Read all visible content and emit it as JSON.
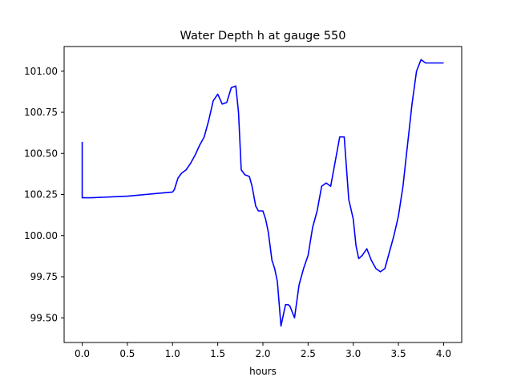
{
  "chart_data": {
    "type": "line",
    "title": "Water Depth h at gauge 550",
    "xlabel": "hours",
    "ylabel": "",
    "xlim": [
      -0.2,
      4.2
    ],
    "ylim": [
      99.35,
      101.15
    ],
    "xticks": [
      0.0,
      0.5,
      1.0,
      1.5,
      2.0,
      2.5,
      3.0,
      3.5,
      4.0
    ],
    "xtick_labels": [
      "0.0",
      "0.5",
      "1.0",
      "1.5",
      "2.0",
      "2.5",
      "3.0",
      "3.5",
      "4.0"
    ],
    "yticks": [
      99.5,
      99.75,
      100.0,
      100.25,
      100.5,
      100.75,
      101.0
    ],
    "ytick_labels": [
      "99.50",
      "99.75",
      "100.00",
      "100.25",
      "100.50",
      "100.75",
      "101.00"
    ],
    "grid": false,
    "series": [
      {
        "color": "#0000ff",
        "x": [
          0.0,
          0.0,
          0.02,
          0.1,
          0.3,
          0.5,
          0.6,
          0.7,
          0.8,
          0.9,
          1.0,
          1.02,
          1.06,
          1.1,
          1.15,
          1.2,
          1.25,
          1.3,
          1.35,
          1.4,
          1.45,
          1.5,
          1.55,
          1.6,
          1.65,
          1.7,
          1.73,
          1.76,
          1.8,
          1.85,
          1.88,
          1.92,
          1.95,
          2.0,
          2.03,
          2.06,
          2.1,
          2.13,
          2.16,
          2.2,
          2.25,
          2.28,
          2.3,
          2.35,
          2.4,
          2.45,
          2.5,
          2.55,
          2.6,
          2.65,
          2.7,
          2.75,
          2.8,
          2.85,
          2.9,
          2.95,
          3.0,
          3.03,
          3.06,
          3.1,
          3.15,
          3.2,
          3.25,
          3.3,
          3.35,
          3.4,
          3.45,
          3.5,
          3.55,
          3.6,
          3.65,
          3.7,
          3.75,
          3.8,
          3.85,
          3.9,
          3.95,
          4.0
        ],
        "y": [
          100.57,
          100.23,
          100.23,
          100.23,
          100.235,
          100.24,
          100.245,
          100.25,
          100.255,
          100.26,
          100.265,
          100.28,
          100.35,
          100.38,
          100.4,
          100.44,
          100.49,
          100.55,
          100.6,
          100.7,
          100.82,
          100.86,
          100.8,
          100.81,
          100.9,
          100.91,
          100.75,
          100.4,
          100.37,
          100.36,
          100.3,
          100.18,
          100.15,
          100.15,
          100.1,
          100.02,
          99.85,
          99.8,
          99.72,
          99.45,
          99.58,
          99.58,
          99.57,
          99.5,
          99.7,
          99.8,
          99.88,
          100.05,
          100.15,
          100.3,
          100.32,
          100.3,
          100.45,
          100.6,
          100.6,
          100.22,
          100.1,
          99.94,
          99.86,
          99.88,
          99.92,
          99.85,
          99.8,
          99.78,
          99.8,
          99.9,
          100.0,
          100.12,
          100.3,
          100.55,
          100.8,
          101.0,
          101.07,
          101.05,
          101.05,
          101.05,
          101.05,
          101.05
        ]
      }
    ]
  }
}
